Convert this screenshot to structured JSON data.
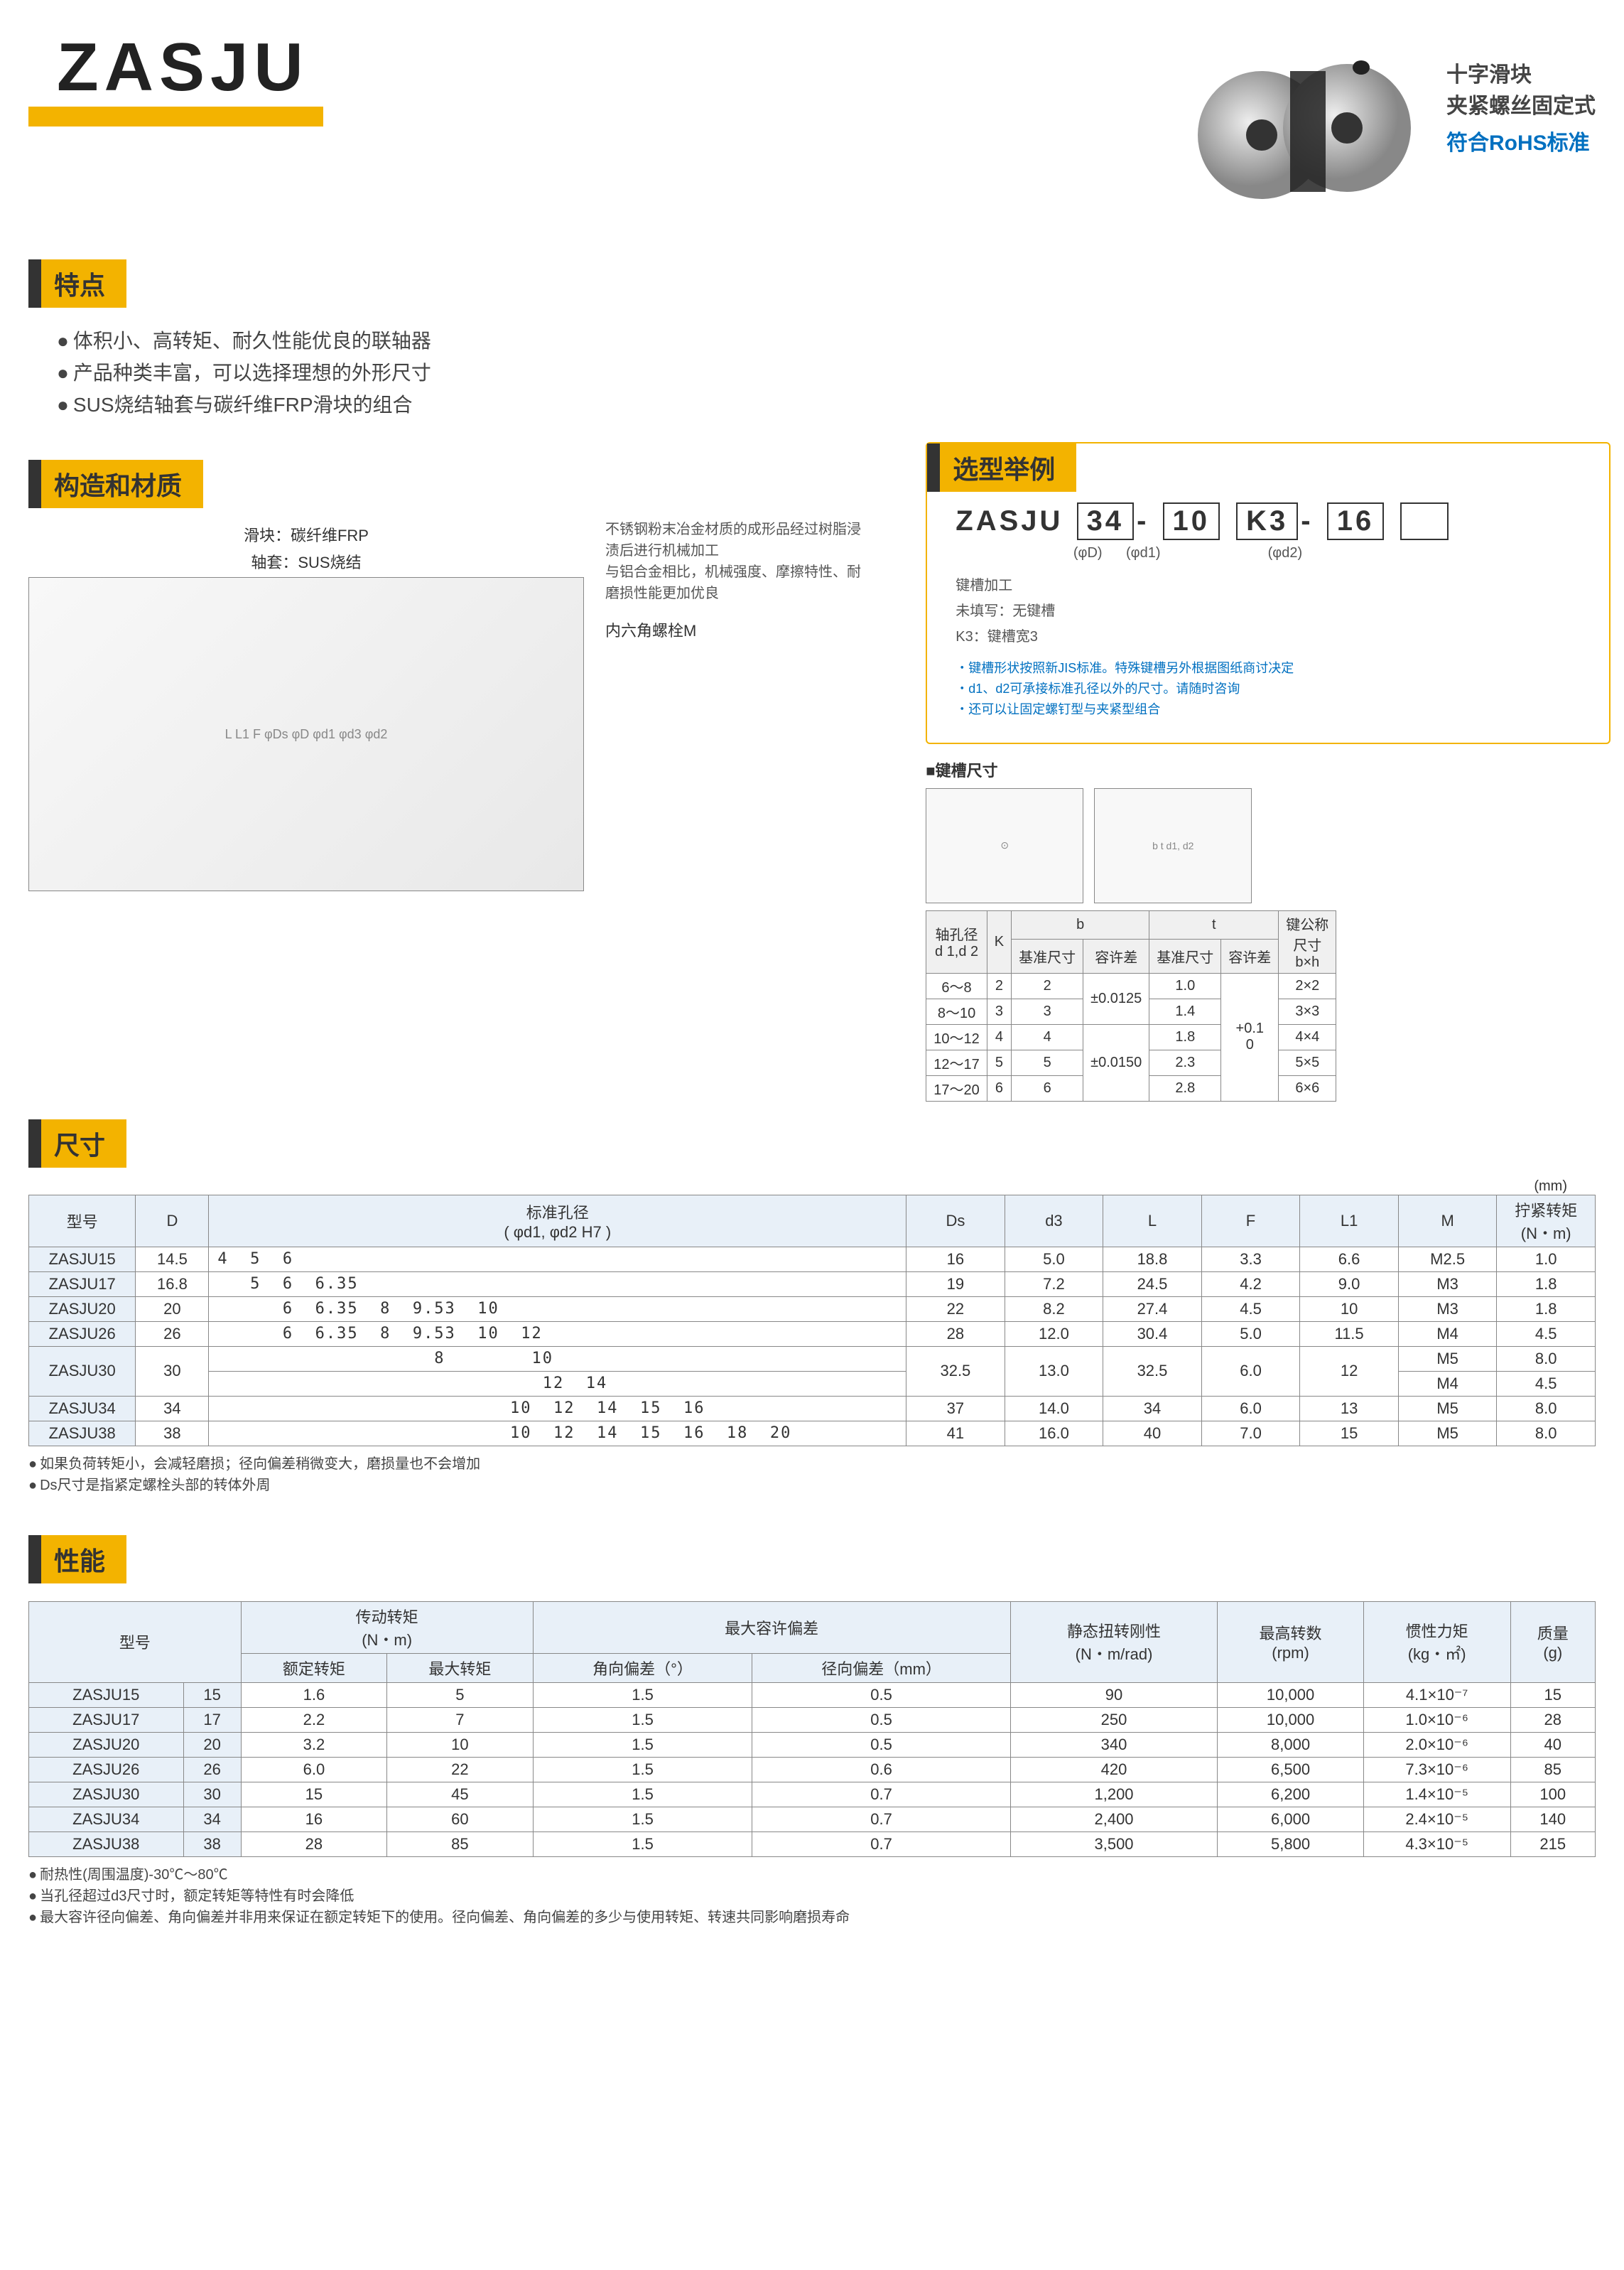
{
  "title": "ZASJU",
  "header": {
    "line1": "十字滑块",
    "line2": "夹紧螺丝固定式",
    "line3": "符合RoHS标准"
  },
  "features": {
    "title": "特点",
    "items": [
      "体积小、高转矩、耐久性能优良的联轴器",
      "产品种类丰富，可以选择理想的外形尺寸",
      "SUS烧结轴套与碳纤维FRP滑块的组合"
    ]
  },
  "construct": {
    "title": "构造和材质",
    "slider": "滑块：碳纤维FRP",
    "sleeve": "轴套：SUS烧结",
    "note": "不锈钢粉末冶金材质的成形品经过树脂浸渍后进行机械加工\n与铝合金相比，机械强度、摩擦特性、耐磨损性能更加优良",
    "bolt": "内六角螺栓M",
    "dims": "L  L1  F  φDs  φD  φd1  φd3  φd2"
  },
  "example": {
    "title": "选型举例",
    "code_prefix": "ZASJU",
    "c1": "34",
    "c1_sub": "(φD)",
    "c2": "10",
    "c2_sub": "(φd1)",
    "c3": "K3",
    "c4": "16",
    "c4_sub": "(φd2)",
    "key_note": "键槽加工\n未填写：无键槽\nK3：键槽宽3",
    "notes": [
      "・键槽形状按照新JIS标准。特殊键槽另外根据图纸商讨决定",
      "・d1、d2可承接标准孔径以外的尺寸。请随时咨询",
      "・还可以让固定螺钉型与夹紧型组合"
    ]
  },
  "keyway": {
    "title": "■键槽尺寸",
    "dim_labels": "b  t  d1, d2",
    "headers": [
      "轴孔径\nd 1,d 2",
      "K",
      "b 基准尺寸",
      "b 容许差",
      "t 基准尺寸",
      "t 容许差",
      "键公称尺寸 b×h"
    ],
    "rows": [
      [
        "6～8",
        "2",
        "2",
        "±0.0125",
        "1.0",
        "+0.1 0",
        "2×2"
      ],
      [
        "8～10",
        "3",
        "3",
        "±0.0125",
        "1.4",
        "+0.1 0",
        "3×3"
      ],
      [
        "10～12",
        "4",
        "4",
        "±0.0150",
        "1.8",
        "+0.1 0",
        "4×4"
      ],
      [
        "12～17",
        "5",
        "5",
        "±0.0150",
        "2.3",
        "+0.1 0",
        "5×5"
      ],
      [
        "17～20",
        "6",
        "6",
        "±0.0150",
        "2.8",
        "+0.1 0",
        "6×6"
      ]
    ]
  },
  "size": {
    "title": "尺寸",
    "unit": "(mm)",
    "headers": [
      "型号",
      "D",
      "标准孔径\n( φd1, φd2 H7 )",
      "Ds",
      "d3",
      "L",
      "F",
      "L1",
      "M",
      "拧紧转矩\n(N・m)"
    ],
    "rows": [
      {
        "model": "ZASJU15",
        "D": "14.5",
        "bore": "4  5  6",
        "Ds": "16",
        "d3": "5.0",
        "L": "18.8",
        "F": "3.3",
        "L1": "6.6",
        "M": "M2.5",
        "T": "1.0"
      },
      {
        "model": "ZASJU17",
        "D": "16.8",
        "bore": "   5  6  6.35",
        "Ds": "19",
        "d3": "7.2",
        "L": "24.5",
        "F": "4.2",
        "L1": "9.0",
        "M": "M3",
        "T": "1.8"
      },
      {
        "model": "ZASJU20",
        "D": "20",
        "bore": "      6  6.35  8  9.53  10",
        "Ds": "22",
        "d3": "8.2",
        "L": "27.4",
        "F": "4.5",
        "L1": "10",
        "M": "M3",
        "T": "1.8"
      },
      {
        "model": "ZASJU26",
        "D": "26",
        "bore": "      6  6.35  8  9.53  10  12",
        "Ds": "28",
        "d3": "12.0",
        "L": "30.4",
        "F": "5.0",
        "L1": "11.5",
        "M": "M4",
        "T": "4.5"
      },
      {
        "model": "ZASJU30",
        "D": "30",
        "bore": "                    8        10\n                              12  14",
        "Ds": "32.5",
        "d3": "13.0",
        "L": "32.5",
        "F": "6.0",
        "L1": "12",
        "M": "M5\nM4",
        "T": "8.0\n4.5"
      },
      {
        "model": "ZASJU34",
        "D": "34",
        "bore": "                           10  12  14  15  16",
        "Ds": "37",
        "d3": "14.0",
        "L": "34",
        "F": "6.0",
        "L1": "13",
        "M": "M5",
        "T": "8.0"
      },
      {
        "model": "ZASJU38",
        "D": "38",
        "bore": "                           10  12  14  15  16  18  20",
        "Ds": "41",
        "d3": "16.0",
        "L": "40",
        "F": "7.0",
        "L1": "15",
        "M": "M5",
        "T": "8.0"
      }
    ],
    "notes": [
      "如果负荷转矩小，会减轻磨损；径向偏差稍微变大，磨损量也不会增加",
      "Ds尺寸是指紧定螺栓头部的转体外周"
    ]
  },
  "perf": {
    "title": "性能",
    "headers_top": [
      "型号",
      "",
      "传动转矩\n(N・m)",
      "",
      "最大容许偏差",
      "",
      "静态扭转刚性\n(N・m/rad)",
      "最高转数\n(rpm)",
      "惯性力矩\n(kg・㎡)",
      "质量\n(g)"
    ],
    "headers_sub": [
      "",
      "",
      "额定转矩",
      "最大转矩",
      "角向偏差（°）",
      "径向偏差（mm）",
      "",
      "",
      "",
      ""
    ],
    "rows": [
      [
        "ZASJU15",
        "15",
        "1.6",
        "5",
        "1.5",
        "0.5",
        "90",
        "10,000",
        "4.1×10⁻⁷",
        "15"
      ],
      [
        "ZASJU17",
        "17",
        "2.2",
        "7",
        "1.5",
        "0.5",
        "250",
        "10,000",
        "1.0×10⁻⁶",
        "28"
      ],
      [
        "ZASJU20",
        "20",
        "3.2",
        "10",
        "1.5",
        "0.5",
        "340",
        "8,000",
        "2.0×10⁻⁶",
        "40"
      ],
      [
        "ZASJU26",
        "26",
        "6.0",
        "22",
        "1.5",
        "0.6",
        "420",
        "6,500",
        "7.3×10⁻⁶",
        "85"
      ],
      [
        "ZASJU30",
        "30",
        "15",
        "45",
        "1.5",
        "0.7",
        "1,200",
        "6,200",
        "1.4×10⁻⁵",
        "100"
      ],
      [
        "ZASJU34",
        "34",
        "16",
        "60",
        "1.5",
        "0.7",
        "2,400",
        "6,000",
        "2.4×10⁻⁵",
        "140"
      ],
      [
        "ZASJU38",
        "38",
        "28",
        "85",
        "1.5",
        "0.7",
        "3,500",
        "5,800",
        "4.3×10⁻⁵",
        "215"
      ]
    ],
    "notes": [
      "耐热性(周围温度)-30℃～80℃",
      "当孔径超过d3尺寸时，额定转矩等特性有时会降低",
      "最大容许径向偏差、角向偏差并非用来保证在额定转矩下的使用。径向偏差、角向偏差的多少与使用转矩、转速共同影响磨损寿命"
    ]
  },
  "colors": {
    "accent": "#f3b300",
    "blue_text": "#0070c0",
    "table_head": "#e8f0f8",
    "border": "#888888"
  }
}
